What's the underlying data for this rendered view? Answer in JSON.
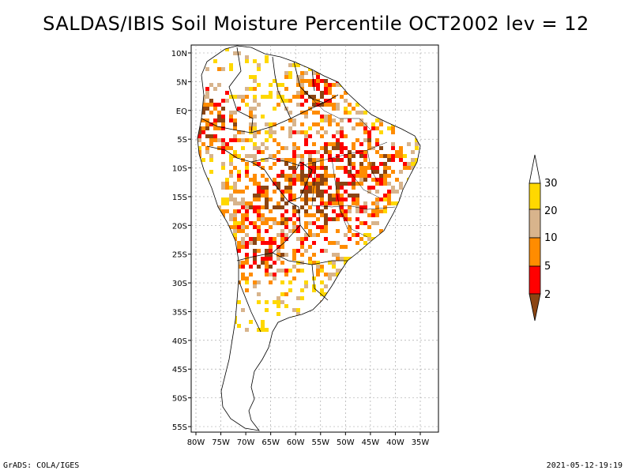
{
  "title": "SALDAS/IBIS Soil Moisture Percentile OCT2002 lev = 12",
  "map": {
    "lat_labels": [
      "10N",
      "5N",
      "EQ",
      "5S",
      "10S",
      "15S",
      "20S",
      "25S",
      "30S",
      "35S",
      "40S",
      "45S",
      "50S",
      "55S"
    ],
    "lon_labels": [
      "80W",
      "75W",
      "70W",
      "65W",
      "60W",
      "55W",
      "50W",
      "45W",
      "40W",
      "35W"
    ]
  },
  "legend": {
    "labels": [
      "30",
      "20",
      "10",
      "5",
      "2"
    ],
    "colors": {
      "above30": "#ffffff",
      "c20_30": "#ffd800",
      "c10_20": "#d8b48c",
      "c5_10": "#ff8c00",
      "c2_5": "#ff0000",
      "below2": "#8b4513"
    }
  },
  "footer": {
    "left": "GrADS: COLA/IGES",
    "right": "2021-05-12-19:19"
  }
}
